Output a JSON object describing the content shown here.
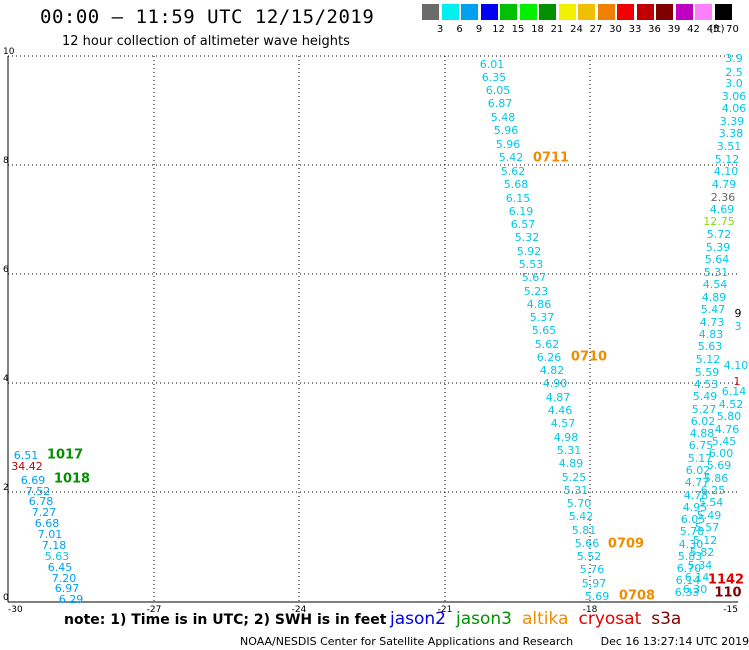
{
  "header": {
    "title": "00:00 – 11:59 UTC 12/15/2019",
    "subtitle": "12 hour collection of altimeter wave heights"
  },
  "legend": {
    "colors": [
      "#6b6b6b",
      "#00f0f0",
      "#00a0f0",
      "#0000f0",
      "#00c000",
      "#00f000",
      "#009000",
      "#f0f000",
      "#f0c000",
      "#f08000",
      "#f00000",
      "#c00000",
      "#800000",
      "#c000c0",
      "#ff80ff",
      "#000000"
    ],
    "labels": [
      "3",
      "6",
      "9",
      "12",
      "15",
      "18",
      "21",
      "24",
      "27",
      "30",
      "33",
      "36",
      "39",
      "42",
      "45",
      "70"
    ],
    "unit": "(ft)"
  },
  "axes": {
    "x_ticks": [
      "-30",
      "-27",
      "-24",
      "-21",
      "-18",
      "-15"
    ],
    "y_ticks": [
      "0",
      "2",
      "4",
      "6",
      "8",
      "10"
    ]
  },
  "observations": [
    {
      "v": "6.01",
      "x": 492,
      "y": 65,
      "c": "#00c8e6"
    },
    {
      "v": "6.35",
      "x": 494,
      "y": 78,
      "c": "#00c8e6"
    },
    {
      "v": "6.05",
      "x": 498,
      "y": 91,
      "c": "#00c8e6"
    },
    {
      "v": "6.87",
      "x": 500,
      "y": 104,
      "c": "#00c8e6"
    },
    {
      "v": "5.48",
      "x": 503,
      "y": 118,
      "c": "#00c8e6"
    },
    {
      "v": "5.96",
      "x": 506,
      "y": 131,
      "c": "#00c8e6"
    },
    {
      "v": "5.96",
      "x": 508,
      "y": 145,
      "c": "#00c8e6"
    },
    {
      "v": "5.42",
      "x": 511,
      "y": 158,
      "c": "#00c8e6"
    },
    {
      "v": "5.62",
      "x": 513,
      "y": 172,
      "c": "#00c8e6"
    },
    {
      "v": "5.68",
      "x": 516,
      "y": 185,
      "c": "#00c8e6"
    },
    {
      "v": "6.15",
      "x": 518,
      "y": 199,
      "c": "#00c8e6"
    },
    {
      "v": "6.19",
      "x": 521,
      "y": 212,
      "c": "#00c8e6"
    },
    {
      "v": "6.57",
      "x": 523,
      "y": 225,
      "c": "#00c8e6"
    },
    {
      "v": "5.32",
      "x": 527,
      "y": 238,
      "c": "#00c8e6"
    },
    {
      "v": "5.92",
      "x": 529,
      "y": 252,
      "c": "#00c8e6"
    },
    {
      "v": "5.53",
      "x": 531,
      "y": 265,
      "c": "#00c8e6"
    },
    {
      "v": "5.67",
      "x": 534,
      "y": 278,
      "c": "#00c8e6"
    },
    {
      "v": "5.23",
      "x": 536,
      "y": 292,
      "c": "#00c8e6"
    },
    {
      "v": "4.86",
      "x": 539,
      "y": 305,
      "c": "#00c8e6"
    },
    {
      "v": "5.37",
      "x": 542,
      "y": 318,
      "c": "#00c8e6"
    },
    {
      "v": "5.65",
      "x": 544,
      "y": 331,
      "c": "#00c8e6"
    },
    {
      "v": "5.62",
      "x": 547,
      "y": 345,
      "c": "#00c8e6"
    },
    {
      "v": "6.26",
      "x": 549,
      "y": 358,
      "c": "#00c8e6"
    },
    {
      "v": "4.82",
      "x": 552,
      "y": 371,
      "c": "#00c8e6"
    },
    {
      "v": "4.90",
      "x": 555,
      "y": 384,
      "c": "#00c8e6"
    },
    {
      "v": "4.87",
      "x": 558,
      "y": 398,
      "c": "#00c8e6"
    },
    {
      "v": "4.46",
      "x": 560,
      "y": 411,
      "c": "#00c8e6"
    },
    {
      "v": "4.57",
      "x": 563,
      "y": 424,
      "c": "#00c8e6"
    },
    {
      "v": "4.98",
      "x": 566,
      "y": 438,
      "c": "#00c8e6"
    },
    {
      "v": "5.31",
      "x": 569,
      "y": 451,
      "c": "#00c8e6"
    },
    {
      "v": "4.89",
      "x": 571,
      "y": 464,
      "c": "#00c8e6"
    },
    {
      "v": "5.25",
      "x": 574,
      "y": 478,
      "c": "#00c8e6"
    },
    {
      "v": "5.31",
      "x": 576,
      "y": 491,
      "c": "#00c8e6"
    },
    {
      "v": "5.70",
      "x": 579,
      "y": 504,
      "c": "#00c8e6"
    },
    {
      "v": "5.42",
      "x": 581,
      "y": 517,
      "c": "#00c8e6"
    },
    {
      "v": "5.81",
      "x": 584,
      "y": 531,
      "c": "#00c8e6"
    },
    {
      "v": "5.66",
      "x": 587,
      "y": 544,
      "c": "#00c8e6"
    },
    {
      "v": "5.52",
      "x": 589,
      "y": 557,
      "c": "#00c8e6"
    },
    {
      "v": "5.76",
      "x": 592,
      "y": 570,
      "c": "#00c8e6"
    },
    {
      "v": "5.97",
      "x": 594,
      "y": 584,
      "c": "#00c8e6"
    },
    {
      "v": "5.69",
      "x": 597,
      "y": 597,
      "c": "#00c8e6"
    },
    {
      "v": "6.51",
      "x": 26,
      "y": 456,
      "c": "#00a0f0"
    },
    {
      "v": "34.42",
      "x": 27,
      "y": 467,
      "c": "#c00000"
    },
    {
      "v": "6.69",
      "x": 33,
      "y": 481,
      "c": "#00a0f0"
    },
    {
      "v": "7.52",
      "x": 38,
      "y": 492,
      "c": "#00a0f0"
    },
    {
      "v": "6.78",
      "x": 41,
      "y": 502,
      "c": "#00a0f0"
    },
    {
      "v": "7.27",
      "x": 44,
      "y": 513,
      "c": "#00a0f0"
    },
    {
      "v": "6.68",
      "x": 47,
      "y": 524,
      "c": "#00a0f0"
    },
    {
      "v": "7.01",
      "x": 50,
      "y": 535,
      "c": "#00a0f0"
    },
    {
      "v": "7.18",
      "x": 54,
      "y": 546,
      "c": "#00a0f0"
    },
    {
      "v": "5.63",
      "x": 57,
      "y": 557,
      "c": "#00c8e6"
    },
    {
      "v": "6.45",
      "x": 60,
      "y": 568,
      "c": "#00a0f0"
    },
    {
      "v": "7.20",
      "x": 64,
      "y": 579,
      "c": "#00a0f0"
    },
    {
      "v": "6.97",
      "x": 67,
      "y": 589,
      "c": "#00a0f0"
    },
    {
      "v": "6.29",
      "x": 71,
      "y": 600,
      "c": "#00a0f0"
    },
    {
      "v": "3.9",
      "x": 734,
      "y": 59,
      "c": "#00c8e6"
    },
    {
      "v": "2.5",
      "x": 734,
      "y": 73,
      "c": "#00c8e6"
    },
    {
      "v": "3.0",
      "x": 734,
      "y": 84,
      "c": "#00c8e6"
    },
    {
      "v": "3.06",
      "x": 734,
      "y": 97,
      "c": "#00c8e6"
    },
    {
      "v": "4.06",
      "x": 734,
      "y": 109,
      "c": "#00c8e6"
    },
    {
      "v": "3.39",
      "x": 732,
      "y": 122,
      "c": "#00c8e6"
    },
    {
      "v": "3.38",
      "x": 731,
      "y": 134,
      "c": "#00c8e6"
    },
    {
      "v": "3.51",
      "x": 729,
      "y": 147,
      "c": "#00c8e6"
    },
    {
      "v": "5.12",
      "x": 727,
      "y": 160,
      "c": "#00c8e6"
    },
    {
      "v": "4.10",
      "x": 726,
      "y": 172,
      "c": "#00c8e6"
    },
    {
      "v": "4.79",
      "x": 724,
      "y": 185,
      "c": "#00c8e6"
    },
    {
      "v": "2.36",
      "x": 723,
      "y": 198,
      "c": "#666666"
    },
    {
      "v": "4.69",
      "x": 722,
      "y": 210,
      "c": "#00c8e6"
    },
    {
      "v": "12.75",
      "x": 719,
      "y": 222,
      "c": "#80e000"
    },
    {
      "v": "5.72",
      "x": 719,
      "y": 235,
      "c": "#00c8e6"
    },
    {
      "v": "5.39",
      "x": 718,
      "y": 248,
      "c": "#00c8e6"
    },
    {
      "v": "5.64",
      "x": 717,
      "y": 260,
      "c": "#00c8e6"
    },
    {
      "v": "5.31",
      "x": 716,
      "y": 273,
      "c": "#00c8e6"
    },
    {
      "v": "4.54",
      "x": 715,
      "y": 285,
      "c": "#00c8e6"
    },
    {
      "v": "4.89",
      "x": 714,
      "y": 298,
      "c": "#00c8e6"
    },
    {
      "v": "5.47",
      "x": 713,
      "y": 310,
      "c": "#00c8e6"
    },
    {
      "v": "4.73",
      "x": 712,
      "y": 323,
      "c": "#00c8e6"
    },
    {
      "v": "4.83",
      "x": 711,
      "y": 335,
      "c": "#00c8e6"
    },
    {
      "v": "5.63",
      "x": 710,
      "y": 347,
      "c": "#00c8e6"
    },
    {
      "v": "5.12",
      "x": 708,
      "y": 360,
      "c": "#00c8e6"
    },
    {
      "v": "5.59",
      "x": 707,
      "y": 373,
      "c": "#00c8e6"
    },
    {
      "v": "4.53",
      "x": 706,
      "y": 385,
      "c": "#00c8e6"
    },
    {
      "v": "5.49",
      "x": 705,
      "y": 397,
      "c": "#00c8e6"
    },
    {
      "v": "5.27",
      "x": 704,
      "y": 410,
      "c": "#00c8e6"
    },
    {
      "v": "6.02",
      "x": 703,
      "y": 422,
      "c": "#00c8e6"
    },
    {
      "v": "4.88",
      "x": 702,
      "y": 434,
      "c": "#00c8e6"
    },
    {
      "v": "6.75",
      "x": 701,
      "y": 446,
      "c": "#00c8e6"
    },
    {
      "v": "5.17",
      "x": 700,
      "y": 459,
      "c": "#00c8e6"
    },
    {
      "v": "6.02",
      "x": 698,
      "y": 471,
      "c": "#00c8e6"
    },
    {
      "v": "4.77",
      "x": 697,
      "y": 483,
      "c": "#00c8e6"
    },
    {
      "v": "4.78",
      "x": 696,
      "y": 496,
      "c": "#00c8e6"
    },
    {
      "v": "4.95",
      "x": 695,
      "y": 508,
      "c": "#00c8e6"
    },
    {
      "v": "6.05",
      "x": 693,
      "y": 520,
      "c": "#00c8e6"
    },
    {
      "v": "5.78",
      "x": 692,
      "y": 532,
      "c": "#00c8e6"
    },
    {
      "v": "4.30",
      "x": 691,
      "y": 545,
      "c": "#00c8e6"
    },
    {
      "v": "5.83",
      "x": 690,
      "y": 557,
      "c": "#00c8e6"
    },
    {
      "v": "6.70",
      "x": 689,
      "y": 569,
      "c": "#00c8e6"
    },
    {
      "v": "6.14",
      "x": 688,
      "y": 581,
      "c": "#00c8e6"
    },
    {
      "v": "6.33",
      "x": 687,
      "y": 593,
      "c": "#00c8e6"
    },
    {
      "v": "4.10",
      "x": 736,
      "y": 366,
      "c": "#00c8e6"
    },
    {
      "v": "6.14",
      "x": 734,
      "y": 392,
      "c": "#00c8e6"
    },
    {
      "v": "4.52",
      "x": 731,
      "y": 405,
      "c": "#00c8e6"
    },
    {
      "v": "5.80",
      "x": 729,
      "y": 417,
      "c": "#00c8e6"
    },
    {
      "v": "4.76",
      "x": 727,
      "y": 430,
      "c": "#00c8e6"
    },
    {
      "v": "5.45",
      "x": 724,
      "y": 442,
      "c": "#00c8e6"
    },
    {
      "v": "6.00",
      "x": 721,
      "y": 454,
      "c": "#00c8e6"
    },
    {
      "v": "5.69",
      "x": 719,
      "y": 466,
      "c": "#00c8e6"
    },
    {
      "v": "5.86",
      "x": 716,
      "y": 479,
      "c": "#00c8e6"
    },
    {
      "v": "6.25",
      "x": 713,
      "y": 491,
      "c": "#00c8e6"
    },
    {
      "v": "5.54",
      "x": 711,
      "y": 503,
      "c": "#00c8e6"
    },
    {
      "v": "5.49",
      "x": 709,
      "y": 516,
      "c": "#00c8e6"
    },
    {
      "v": "5.57",
      "x": 707,
      "y": 528,
      "c": "#00c8e6"
    },
    {
      "v": "5.12",
      "x": 705,
      "y": 541,
      "c": "#00c8e6"
    },
    {
      "v": "5.82",
      "x": 702,
      "y": 553,
      "c": "#00c8e6"
    },
    {
      "v": "5.34",
      "x": 700,
      "y": 566,
      "c": "#00c8e6"
    },
    {
      "v": "6.14",
      "x": 697,
      "y": 578,
      "c": "#00c8e6"
    },
    {
      "v": "6.30",
      "x": 695,
      "y": 590,
      "c": "#00c8e6"
    },
    {
      "v": "9",
      "x": 738,
      "y": 314,
      "c": "#000000"
    },
    {
      "v": "3",
      "x": 738,
      "y": 327,
      "c": "#00c8e6"
    },
    {
      "v": "1",
      "x": 737,
      "y": 382,
      "c": "#e00000"
    }
  ],
  "pass_ids": [
    {
      "v": "0711",
      "x": 551,
      "y": 158,
      "c": "#f08c00"
    },
    {
      "v": "0710",
      "x": 589,
      "y": 357,
      "c": "#f08c00"
    },
    {
      "v": "0709",
      "x": 626,
      "y": 544,
      "c": "#f08c00"
    },
    {
      "v": "0708",
      "x": 637,
      "y": 596,
      "c": "#f08c00"
    },
    {
      "v": "1017",
      "x": 65,
      "y": 455,
      "c": "#009000"
    },
    {
      "v": "1018",
      "x": 72,
      "y": 479,
      "c": "#009000"
    },
    {
      "v": "1142",
      "x": 726,
      "y": 580,
      "c": "#e00000"
    },
    {
      "v": "110",
      "x": 728,
      "y": 593,
      "c": "#800000"
    }
  ],
  "footer_note": "note:  1) Time is in UTC;  2) SWH is in feet",
  "satellites": [
    {
      "name": "jason2",
      "color": "#0000e6"
    },
    {
      "name": "jason3",
      "color": "#009000"
    },
    {
      "name": "altika",
      "color": "#f08c00"
    },
    {
      "name": "cryosat",
      "color": "#e00000"
    },
    {
      "name": "s3a",
      "color": "#800000"
    }
  ],
  "credit": "NOAA/NESDIS Center for Satellite Applications and Research",
  "timestamp": "Dec 16 13:27:14 UTC 2019"
}
